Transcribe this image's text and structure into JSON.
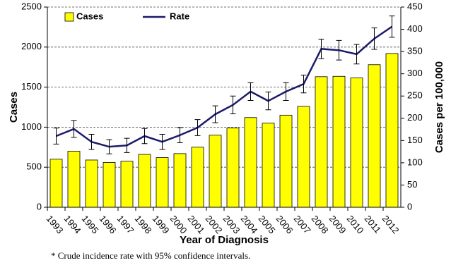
{
  "chart_data": {
    "type": "bar_line",
    "categories": [
      "1993",
      "1994",
      "1995",
      "1996",
      "1997",
      "1998",
      "1999",
      "2000",
      "2001",
      "2002",
      "2003",
      "2004",
      "2005",
      "2006",
      "2007",
      "2008",
      "2009",
      "2010",
      "2011",
      "2012"
    ],
    "series": [
      {
        "name": "Cases",
        "type": "bar",
        "color": "#ffff00",
        "values": [
          600,
          700,
          590,
          560,
          575,
          660,
          620,
          670,
          750,
          900,
          990,
          1120,
          1050,
          1150,
          1260,
          1630,
          1635,
          1615,
          1780,
          1920
        ]
      },
      {
        "name": "Rate",
        "type": "line",
        "axis": "y2",
        "color": "#1b1b6b",
        "values": [
          160,
          176,
          147,
          136,
          139,
          160,
          147,
          162,
          179,
          209,
          230,
          260,
          239,
          260,
          277,
          356,
          353,
          344,
          379,
          406
        ],
        "errors": [
          18,
          19,
          17,
          16,
          16,
          17,
          17,
          17,
          18,
          19,
          20,
          20,
          20,
          20,
          20,
          22,
          22,
          22,
          24,
          24
        ]
      }
    ],
    "ylim": [
      0,
      2500
    ],
    "yticks": [
      0,
      500,
      1000,
      1500,
      2000,
      2500
    ],
    "y2lim": [
      0,
      450
    ],
    "y2ticks": [
      0,
      50,
      100,
      150,
      200,
      250,
      300,
      350,
      400,
      450
    ],
    "grid": true,
    "xlabel": "Year of Diagnosis",
    "ylabel": "Cases",
    "y2label": "Cases per 100,000",
    "footnote": "* Crude incidence rate with 95% confidence intervals."
  }
}
